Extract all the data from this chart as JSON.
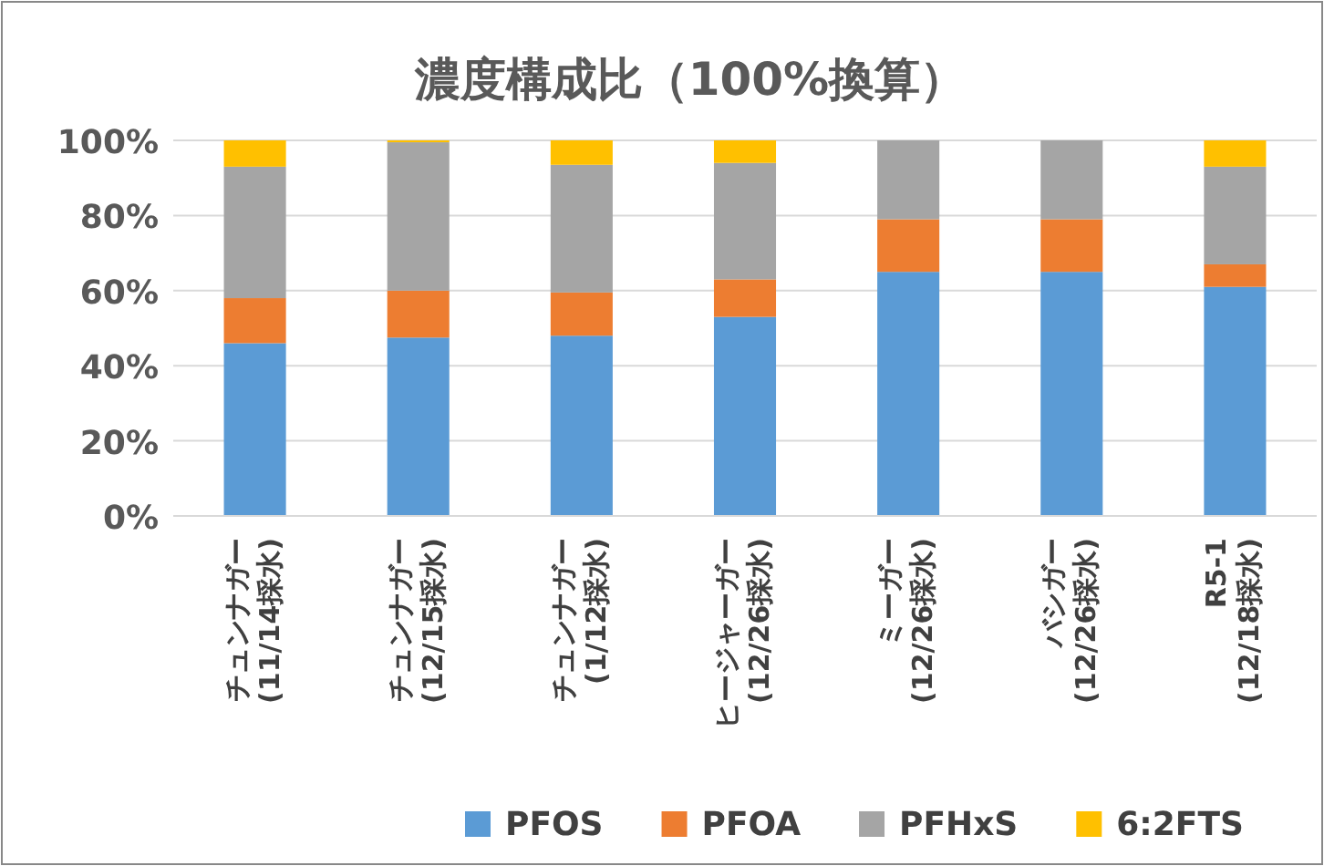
{
  "chart_data": {
    "type": "bar",
    "title": "濃度構成比（100%換算）",
    "stacked": true,
    "categories": [
      "チュンナガー\n(11/14採水)",
      "チュンナガー\n(12/15採水)",
      "チュンナガー\n(1/12採水)",
      "ヒージャーガー\n(12/26採水)",
      "ミーガー\n(12/26採水)",
      "バシガー\n(12/26採水)",
      "R5-1\n(12/18採水)"
    ],
    "series": [
      {
        "name": "PFOS",
        "color": "#5b9bd5",
        "values": [
          46,
          47.5,
          48,
          53,
          65,
          65,
          61
        ]
      },
      {
        "name": "PFOA",
        "color": "#ed7d31",
        "values": [
          12,
          12.5,
          11.5,
          10,
          14,
          14,
          6
        ]
      },
      {
        "name": "PFHxS",
        "color": "#a5a5a5",
        "values": [
          35,
          39.5,
          34,
          31,
          21,
          21,
          26
        ]
      },
      {
        "name": "6:2FTS",
        "color": "#ffc000",
        "values": [
          7,
          0.5,
          6.5,
          6,
          0,
          0,
          7
        ]
      }
    ],
    "ylim": [
      0,
      100
    ],
    "yticks": [
      {
        "value": 0,
        "label": "0%"
      },
      {
        "value": 20,
        "label": "20%"
      },
      {
        "value": 40,
        "label": "40%"
      },
      {
        "value": 60,
        "label": "60%"
      },
      {
        "value": 80,
        "label": "80%"
      },
      {
        "value": 100,
        "label": "100%"
      }
    ],
    "grid": "y",
    "legend": "bottom"
  }
}
